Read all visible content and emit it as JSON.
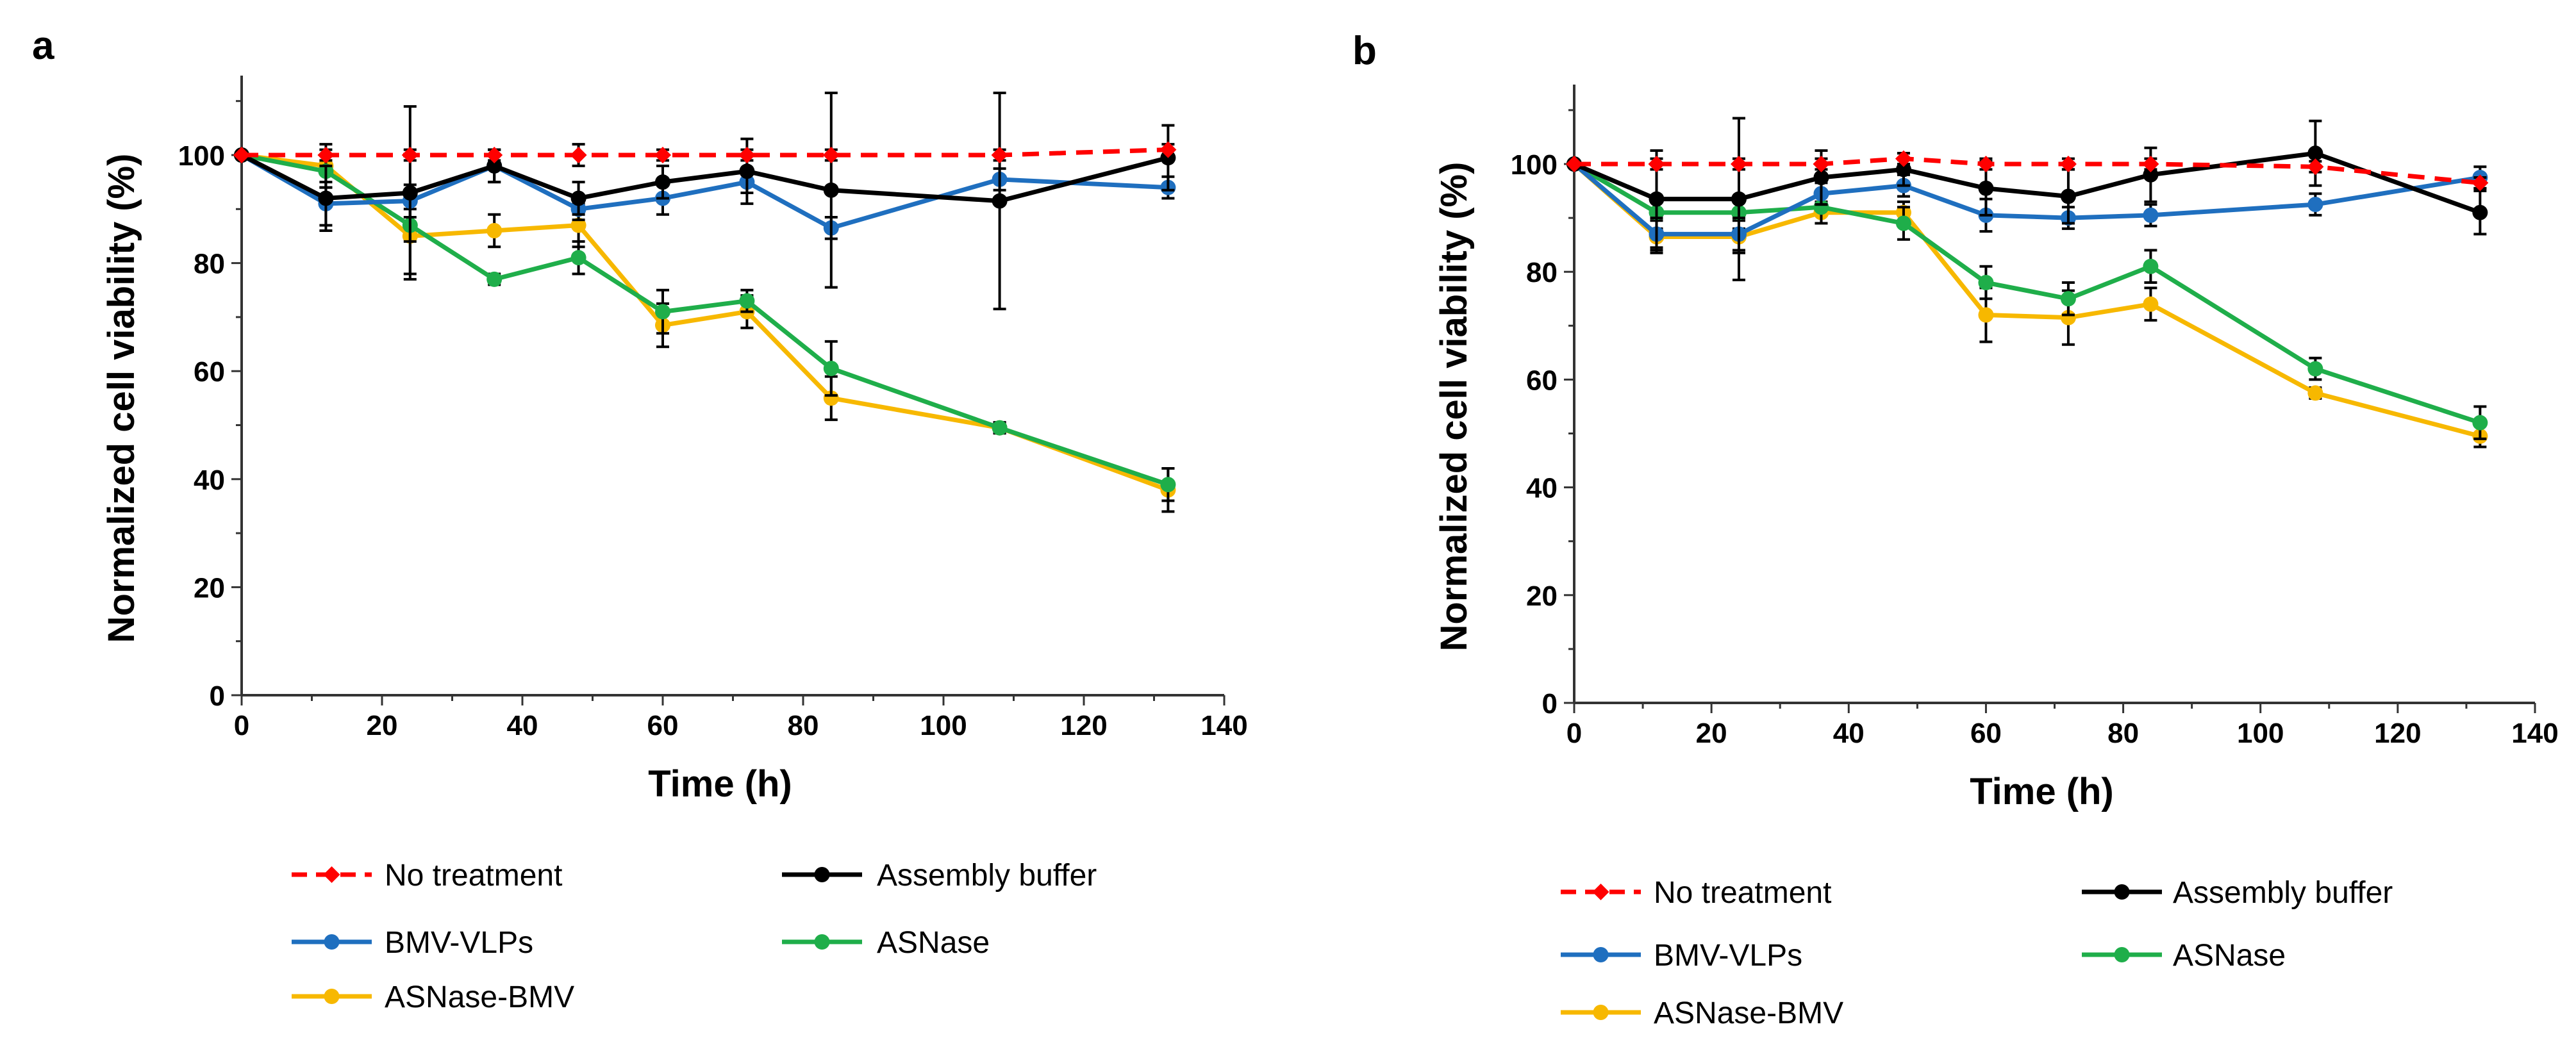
{
  "chart_data": [
    {
      "type": "line",
      "panel_label": "a",
      "xlabel": "Time (h)",
      "ylabel": "Normalized cell viability (%)",
      "xlim": [
        0,
        140
      ],
      "ylim": [
        0,
        115
      ],
      "xticks": [
        0,
        20,
        40,
        60,
        80,
        100,
        120,
        140
      ],
      "yticks": [
        0,
        20,
        40,
        60,
        80,
        100
      ],
      "grid": false,
      "series": [
        {
          "name": "No treatment",
          "color": "#ff0000",
          "dashed": true,
          "marker": "diamond",
          "x": [
            0,
            12,
            24,
            36,
            48,
            60,
            72,
            84,
            108,
            132
          ],
          "y": [
            100,
            100,
            100,
            100,
            100,
            100,
            100,
            100,
            100,
            101
          ],
          "err": [
            0,
            1,
            1,
            1,
            2,
            1,
            1,
            1,
            1,
            1
          ]
        },
        {
          "name": "Assembly buffer",
          "color": "#000000",
          "dashed": false,
          "marker": "circle",
          "x": [
            0,
            12,
            24,
            36,
            48,
            60,
            72,
            84,
            108,
            132
          ],
          "y": [
            100,
            92,
            93,
            98,
            92,
            95,
            97,
            93.5,
            91.5,
            99.5
          ],
          "err": [
            0,
            6,
            16,
            3,
            3,
            3,
            6,
            18,
            20,
            6
          ]
        },
        {
          "name": "BMV-VLPs",
          "color": "#1f6fbf",
          "dashed": false,
          "marker": "circle",
          "x": [
            0,
            12,
            24,
            36,
            48,
            60,
            72,
            84,
            108,
            132
          ],
          "y": [
            100,
            91,
            91.5,
            98,
            90,
            92,
            95,
            86.5,
            95.5,
            94
          ],
          "err": [
            0,
            4,
            3,
            3,
            2,
            3,
            2,
            2,
            2,
            2
          ]
        },
        {
          "name": "ASNase",
          "color": "#1fae4a",
          "dashed": false,
          "marker": "circle",
          "x": [
            0,
            12,
            24,
            36,
            48,
            60,
            72,
            84,
            108,
            132
          ],
          "y": [
            100,
            97,
            87,
            77,
            81,
            71,
            73,
            60.5,
            49.5,
            39
          ],
          "err": [
            0,
            3,
            3,
            1,
            3,
            4,
            2,
            5,
            1,
            3
          ]
        },
        {
          "name": "ASNase-BMV",
          "color": "#f7b800",
          "dashed": false,
          "marker": "circle",
          "x": [
            0,
            12,
            24,
            36,
            48,
            60,
            72,
            84,
            108,
            132
          ],
          "y": [
            100,
            98,
            85,
            86,
            87,
            68.5,
            71,
            55,
            49.5,
            38
          ],
          "err": [
            0,
            4,
            7,
            3,
            4,
            4,
            3,
            4,
            1,
            4
          ]
        }
      ]
    },
    {
      "type": "line",
      "panel_label": "b",
      "xlabel": "Time (h)",
      "ylabel": "Normalized cell viability (%)",
      "xlim": [
        0,
        140
      ],
      "ylim": [
        0,
        115
      ],
      "xticks": [
        0,
        20,
        40,
        60,
        80,
        100,
        120,
        140
      ],
      "yticks": [
        0,
        20,
        40,
        60,
        80,
        100
      ],
      "grid": false,
      "series": [
        {
          "name": "No treatment",
          "color": "#ff0000",
          "dashed": true,
          "marker": "diamond",
          "x": [
            0,
            12,
            24,
            36,
            48,
            60,
            72,
            84,
            108,
            132
          ],
          "y": [
            100,
            100,
            100,
            100,
            101,
            100,
            100,
            100,
            99.5,
            96.5
          ],
          "err": [
            0,
            1,
            1,
            1,
            1,
            1,
            1,
            1,
            1,
            1
          ]
        },
        {
          "name": "Assembly buffer",
          "color": "#000000",
          "dashed": false,
          "marker": "circle",
          "x": [
            0,
            12,
            24,
            36,
            48,
            60,
            72,
            84,
            108,
            132
          ],
          "y": [
            100,
            93.5,
            93.5,
            97.5,
            99,
            95.5,
            94,
            98,
            102,
            91
          ],
          "err": [
            0,
            9,
            15,
            5,
            3,
            5,
            5,
            5,
            6,
            4
          ]
        },
        {
          "name": "BMV-VLPs",
          "color": "#1f6fbf",
          "dashed": false,
          "marker": "circle",
          "x": [
            0,
            12,
            24,
            36,
            48,
            60,
            72,
            84,
            108,
            132
          ],
          "y": [
            100,
            87,
            87,
            94.5,
            96,
            90.5,
            90,
            90.5,
            92.5,
            97.5
          ],
          "err": [
            0,
            3,
            3,
            2,
            2,
            3,
            2,
            2,
            2,
            2
          ]
        },
        {
          "name": "ASNase",
          "color": "#1fae4a",
          "dashed": false,
          "marker": "circle",
          "x": [
            0,
            12,
            24,
            36,
            48,
            60,
            72,
            84,
            108,
            132
          ],
          "y": [
            100,
            91,
            91,
            92,
            89,
            78,
            75,
            81,
            62,
            52
          ],
          "err": [
            0,
            3,
            3,
            3,
            3,
            3,
            3,
            3,
            2,
            3
          ]
        },
        {
          "name": "ASNase-BMV",
          "color": "#f7b800",
          "dashed": false,
          "marker": "circle",
          "x": [
            0,
            12,
            24,
            36,
            48,
            60,
            72,
            84,
            108,
            132
          ],
          "y": [
            100,
            86.5,
            86.5,
            91,
            91,
            72,
            71.5,
            74,
            57.5,
            49.5
          ],
          "err": [
            0,
            3,
            3,
            2,
            2,
            5,
            5,
            3,
            1,
            2
          ]
        }
      ]
    }
  ]
}
